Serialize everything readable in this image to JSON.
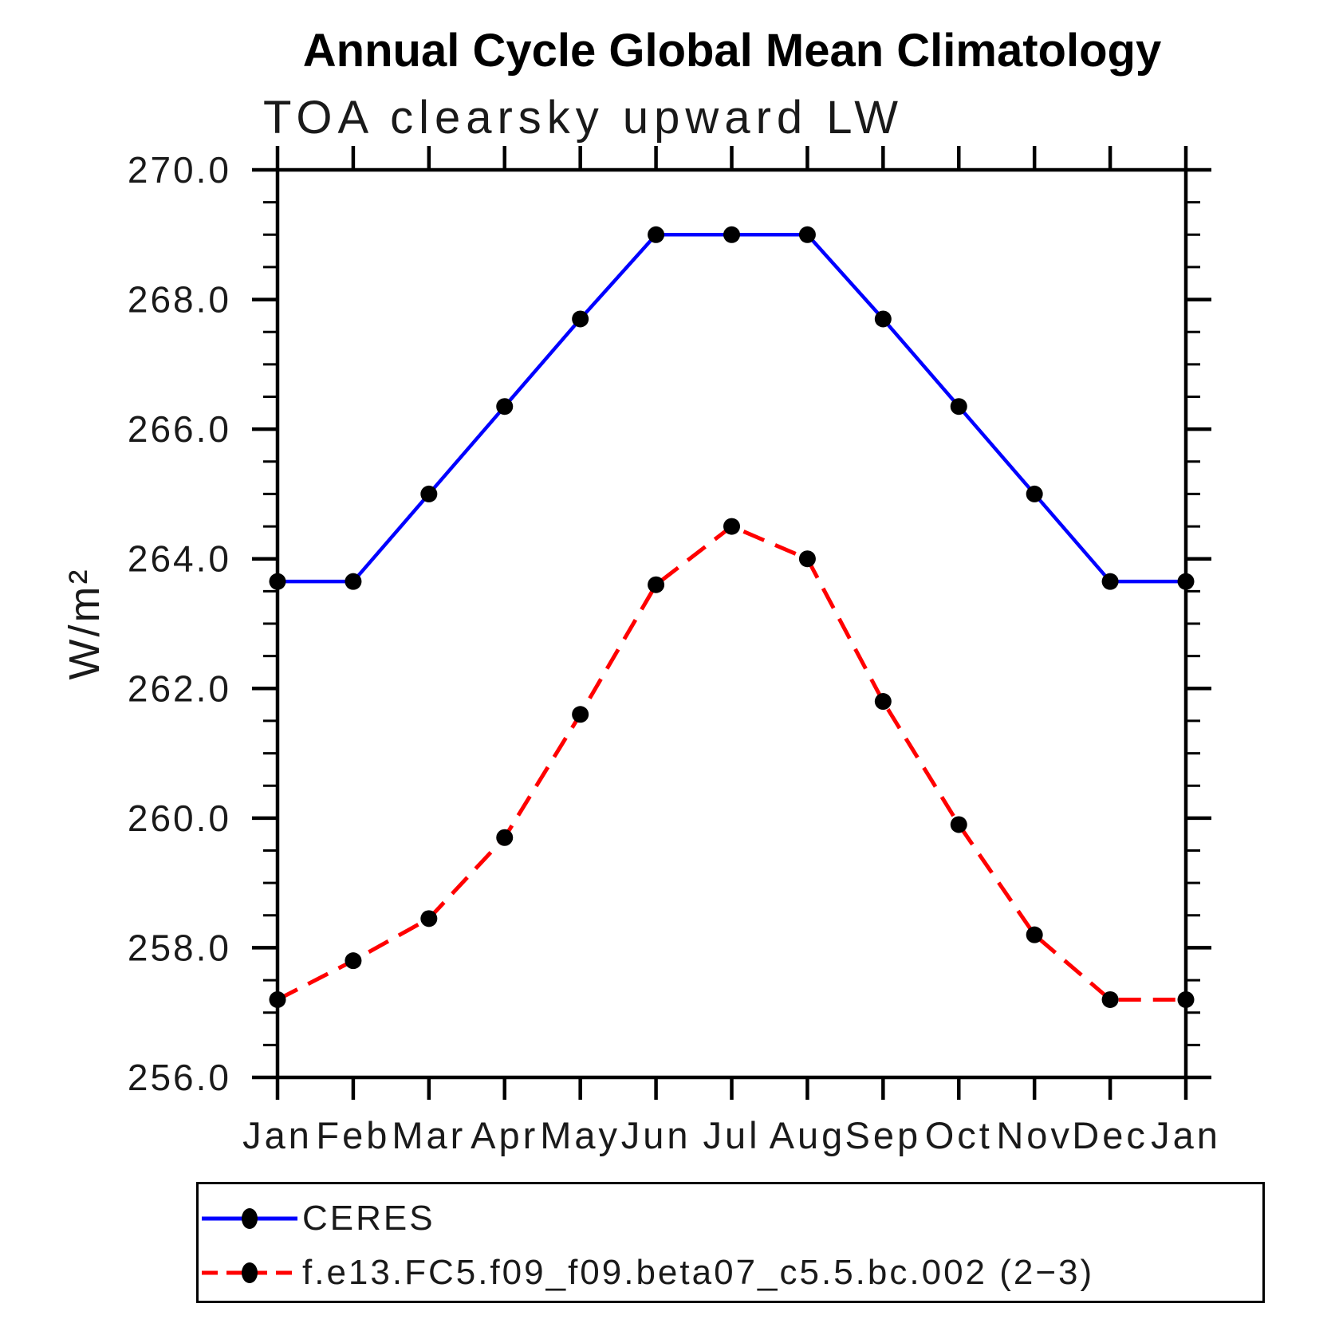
{
  "page": {
    "title": "Annual Cycle Global Mean Climatology",
    "subtitle": "TOA clearsky upward LW",
    "ylabel": "W/m²"
  },
  "chart_data": {
    "type": "line",
    "title": "Annual Cycle Global Mean Climatology",
    "subtitle": "TOA clearsky upward LW",
    "xlabel": "",
    "ylabel": "W/m²",
    "categories": [
      "Jan",
      "Feb",
      "Mar",
      "Apr",
      "May",
      "Jun",
      "Jul",
      "Aug",
      "Sep",
      "Oct",
      "Nov",
      "Dec",
      "Jan"
    ],
    "series": [
      {
        "name": "CERES",
        "color": "#0000ff",
        "line_style": "solid",
        "marker": "filled-circle",
        "marker_color": "#000000",
        "values": [
          263.65,
          263.65,
          265.0,
          266.35,
          267.7,
          269.0,
          269.0,
          269.0,
          267.7,
          266.35,
          265.0,
          263.65,
          263.65
        ]
      },
      {
        "name": "f.e13.FC5.f09_f09.beta07_c5.5.bc.002 (2−3)",
        "color": "#ff0000",
        "line_style": "dashed",
        "marker": "filled-circle",
        "marker_color": "#000000",
        "values": [
          257.2,
          257.8,
          258.45,
          259.7,
          261.6,
          263.6,
          264.5,
          264.0,
          261.8,
          259.9,
          258.2,
          257.2,
          257.2
        ]
      }
    ],
    "ylim": [
      256.0,
      270.0
    ],
    "ytick_major_step": 2.0,
    "ytick_minor_step": 0.5,
    "ytick_labels": [
      "270.0",
      "268.0",
      "266.0",
      "264.0",
      "262.0",
      "260.0",
      "258.0",
      "256.0"
    ],
    "grid": false,
    "frame": "box-with-outward-ticks",
    "legend_position": "bottom"
  }
}
